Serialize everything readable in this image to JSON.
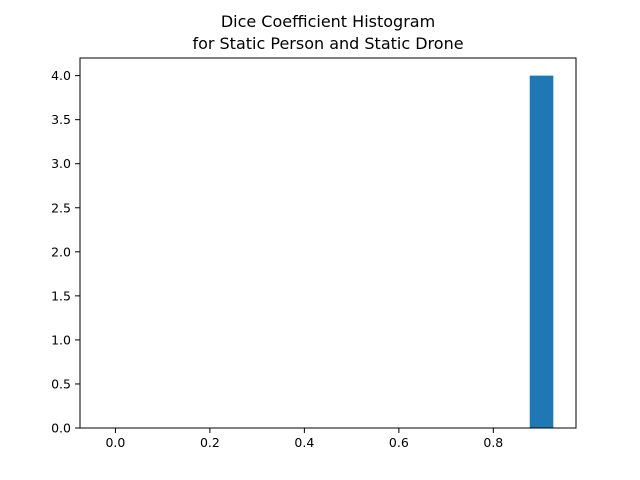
{
  "chart_data": {
    "type": "bar",
    "title": "Dice Coefficient Histogram",
    "subtitle": "for Static Person and Static Drone",
    "xlabel": "",
    "ylabel": "",
    "xlim": [
      -0.075,
      0.975
    ],
    "ylim": [
      0,
      4.2
    ],
    "xticks": [
      0.0,
      0.2,
      0.4,
      0.6,
      0.8
    ],
    "xtick_labels": [
      "0.0",
      "0.2",
      "0.4",
      "0.6",
      "0.8"
    ],
    "yticks": [
      0.0,
      0.5,
      1.0,
      1.5,
      2.0,
      2.5,
      3.0,
      3.5,
      4.0
    ],
    "ytick_labels": [
      "0.0",
      "0.5",
      "1.0",
      "1.5",
      "2.0",
      "2.5",
      "3.0",
      "3.5",
      "4.0"
    ],
    "bins": [
      {
        "x0": 0.877,
        "x1": 0.927,
        "count": 4
      }
    ],
    "grid": false,
    "legend": "none",
    "colors": {
      "bar": "#1f77b4",
      "axes": "#000000",
      "background": "#ffffff"
    }
  }
}
